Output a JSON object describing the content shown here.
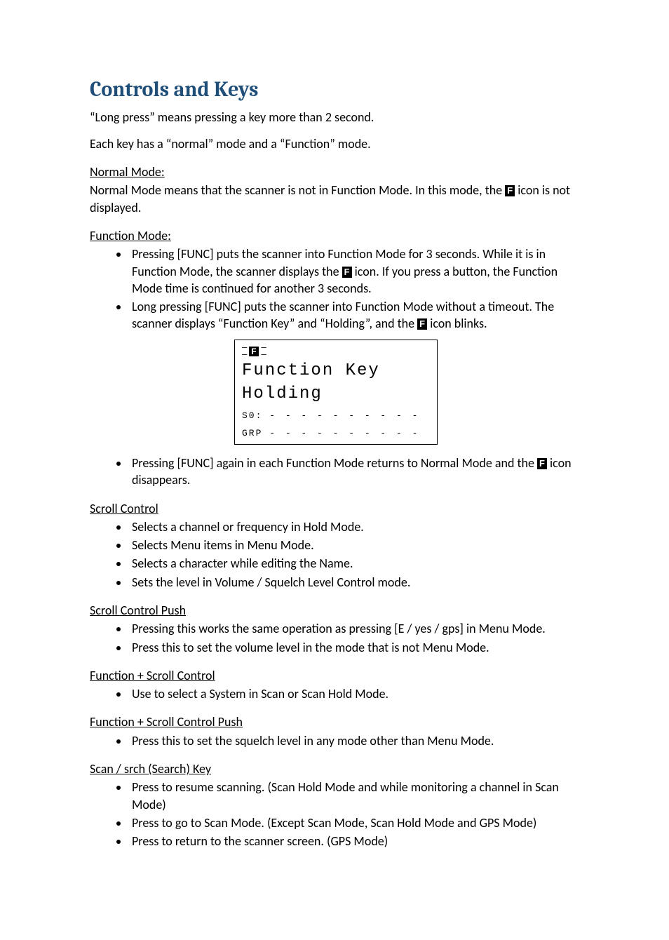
{
  "title": "Controls and Keys",
  "intro": [
    "“Long press” means pressing a key more than 2 second.",
    "Each key has a “normal” mode and a “Function” mode."
  ],
  "normal_mode": {
    "label": "Normal Mode:",
    "text_pre": "Normal Mode means that the scanner is not in Function Mode. In this mode, the ",
    "f_icon": "F",
    "text_post": " icon is not displayed."
  },
  "function_mode": {
    "label": "Function Mode:",
    "bullets": [
      {
        "pre": "Pressing [FUNC] puts the scanner into Function Mode for 3 seconds. While it is in Function Mode, the scanner displays the ",
        "f_icon": "F",
        "post": " icon. If you press a button, the Function Mode time is continued for another 3 seconds."
      },
      {
        "pre": "Long pressing [FUNC] puts the scanner into Function Mode without a timeout. The scanner displays “Function Key” and “Holding”, and the ",
        "f_icon": "F",
        "post": " icon blinks."
      }
    ],
    "after_bullet": {
      "pre": "Pressing [FUNC] again in each Function Mode returns to Normal Mode and the ",
      "f_icon": "F",
      "post": " icon disappears."
    }
  },
  "lcd": {
    "f_icon": "F",
    "line1": "Function Key",
    "line2": "Holding",
    "s0_label": "S0:",
    "grp_label": "GRP",
    "dashes": "- - - - - - - - - -"
  },
  "scroll_control": {
    "label": "Scroll Control",
    "items": [
      "Selects a channel or frequency in Hold Mode.",
      "Selects Menu items in Menu Mode.",
      "Selects a character while editing the Name.",
      "Sets the level in Volume / Squelch Level Control mode."
    ]
  },
  "scroll_control_push": {
    "label": "Scroll Control Push",
    "items": [
      "Pressing this works the same operation as pressing [E / yes / gps] in Menu Mode.",
      "Press this to set the volume level in the mode that is not Menu Mode."
    ]
  },
  "func_scroll_control": {
    "label": "Function + Scroll Control",
    "items": [
      "Use to select a System in Scan or Scan Hold Mode."
    ]
  },
  "func_scroll_control_push": {
    "label": "Function + Scroll Control Push",
    "items": [
      "Press this to set the squelch level in any mode other than Menu Mode."
    ]
  },
  "scan_srch": {
    "label": "Scan / srch (Search) Key",
    "items": [
      "Press to resume scanning. (Scan Hold Mode and while monitoring a channel in Scan Mode)",
      "Press to go to Scan Mode. (Except Scan Mode, Scan Hold Mode and GPS Mode)",
      "Press to return to the scanner screen. (GPS Mode)"
    ]
  }
}
